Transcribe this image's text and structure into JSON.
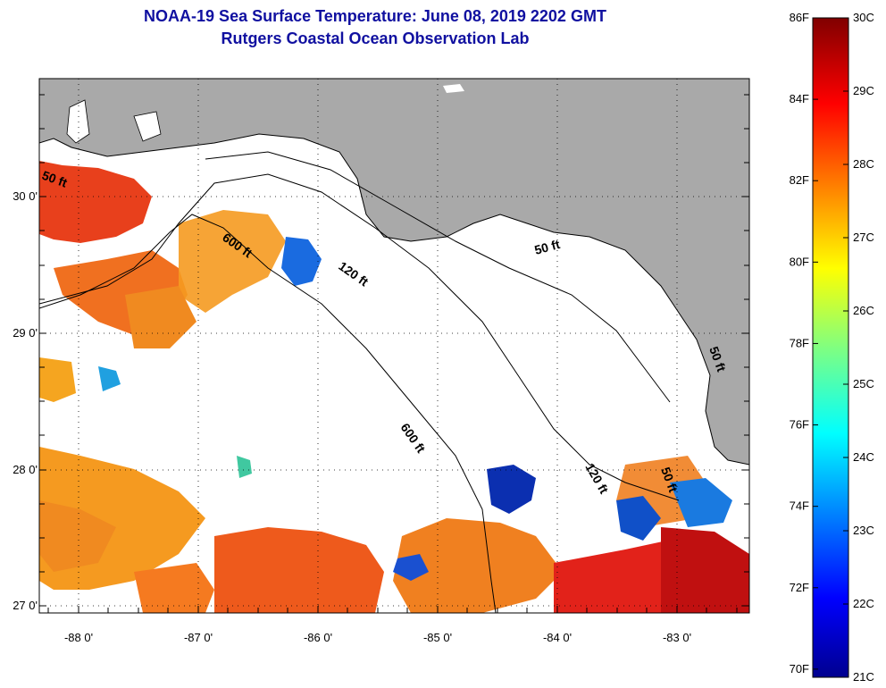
{
  "header": {
    "title": "NOAA-19 Sea Surface Temperature:  June 08, 2019 2202 GMT",
    "subtitle": "Rutgers Coastal Ocean Observation Lab"
  },
  "map": {
    "lon_ticks": [
      "-88 0'",
      "-87 0'",
      "-86 0'",
      "-85 0'",
      "-84 0'",
      "-83 0'"
    ],
    "lat_ticks": [
      "30 0'",
      "29 0'",
      "28 0'",
      "27 0'"
    ],
    "lon_range": [
      -88.3,
      -82.4
    ],
    "lat_range": [
      26.95,
      30.85
    ],
    "land_color": "#a9a9a9",
    "ocean_nodata_color": "#ffffff",
    "contour_labels": [
      "50 ft",
      "600 ft",
      "120 ft",
      "50 ft",
      "600 ft",
      "120 ft",
      "50 ft",
      "50 ft"
    ]
  },
  "colorbar": {
    "fahrenheit_ticks": [
      "86F",
      "84F",
      "82F",
      "80F",
      "78F",
      "76F",
      "74F",
      "72F",
      "70F"
    ],
    "celsius_ticks": [
      "30C",
      "29C",
      "28C",
      "27C",
      "26C",
      "25C",
      "24C",
      "23C",
      "22C",
      "21C"
    ],
    "colormap": "jet",
    "min_c": 21,
    "max_c": 30
  }
}
